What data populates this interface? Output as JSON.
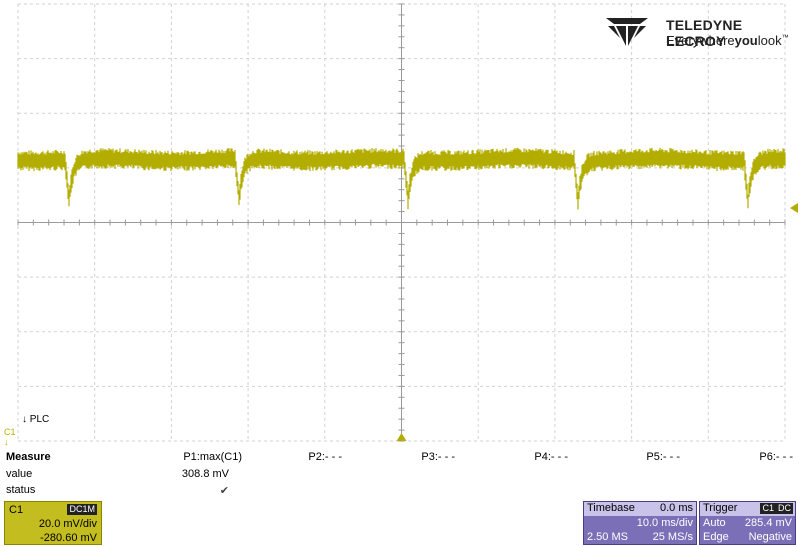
{
  "brand": {
    "name": "TELEDYNE LECROY",
    "tagline_normal": "Everywhere",
    "tagline_bold": "you",
    "tagline_end": "look",
    "tm": "™"
  },
  "screen": {
    "plc_label": "PLC",
    "channel_marker": "C1",
    "trace_color": "#b3ad00"
  },
  "measure": {
    "title": "Measure",
    "value_label": "value",
    "status_label": "status",
    "params": [
      {
        "name": "P1:max(C1)",
        "value": "308.8 mV",
        "status": "✔"
      },
      {
        "name": "P2:- - -",
        "value": "",
        "status": ""
      },
      {
        "name": "P3:- - -",
        "value": "",
        "status": ""
      },
      {
        "name": "P4:- - -",
        "value": "",
        "status": ""
      },
      {
        "name": "P5:- - -",
        "value": "",
        "status": ""
      },
      {
        "name": "P6:- - -",
        "value": "",
        "status": ""
      }
    ]
  },
  "channel": {
    "name": "C1",
    "coupling": "DC1M",
    "scale": "20.0 mV/div",
    "offset": "-280.60 mV",
    "color": "#c4bd1f"
  },
  "timebase": {
    "label": "Timebase",
    "delay": "0.0 ms",
    "scale": "10.0 ms/div",
    "samples": "2.50 MS",
    "rate": "25 MS/s"
  },
  "trigger": {
    "label": "Trigger",
    "source": "C1",
    "coupling": "DC",
    "mode": "Auto",
    "level": "285.4 mV",
    "type": "Edge",
    "slope": "Negative"
  }
}
